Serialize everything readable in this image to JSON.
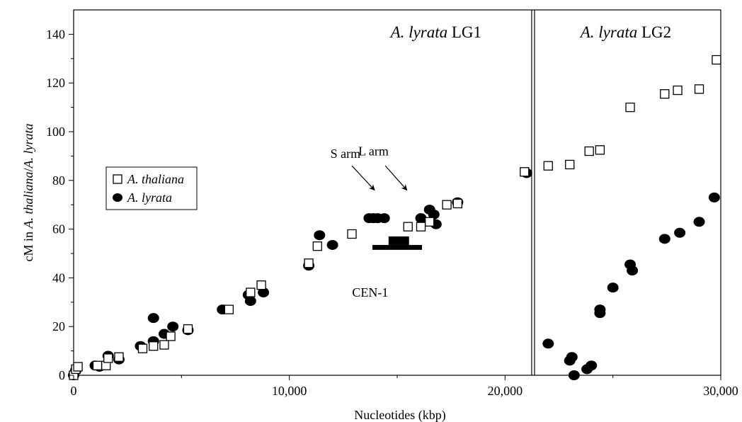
{
  "chart_data": {
    "type": "scatter",
    "xlabel": "Nucleotides (kbp)",
    "ylabel_parts": [
      {
        "text": "cM in ",
        "italic": false
      },
      {
        "text": "A. thaliana",
        "italic": true
      },
      {
        "text": "/",
        "italic": false
      },
      {
        "text": "A. lyrata",
        "italic": true
      }
    ],
    "xlim": [
      0,
      30000
    ],
    "ylim": [
      0,
      150
    ],
    "x_ticks": [
      {
        "value": 0,
        "label": "0"
      },
      {
        "value": 10000,
        "label": "10,000"
      },
      {
        "value": 20000,
        "label": "20,000"
      },
      {
        "value": 30000,
        "label": "30,000"
      }
    ],
    "y_ticks": [
      {
        "value": 0,
        "label": "0"
      },
      {
        "value": 20,
        "label": "20"
      },
      {
        "value": 40,
        "label": "40"
      },
      {
        "value": 60,
        "label": "60"
      },
      {
        "value": 80,
        "label": "80"
      },
      {
        "value": 100,
        "label": "100"
      },
      {
        "value": 120,
        "label": "120"
      },
      {
        "value": 140,
        "label": "140"
      }
    ],
    "divider_x": 21300,
    "regions": [
      {
        "label_italic": "A. lyrata",
        "label_plain": " LG1",
        "x": 16800,
        "y": 141
      },
      {
        "label_italic": "A. lyrata",
        "label_plain": " LG2",
        "x": 25600,
        "y": 141
      }
    ],
    "annotations": [
      {
        "text": "S arm",
        "x": 12600,
        "y": 91
      },
      {
        "text": "L arm",
        "x": 13900,
        "y": 92
      },
      {
        "text": "CEN-1",
        "x": 13750,
        "y": 34
      }
    ],
    "arrows": [
      {
        "from": [
          12900,
          86
        ],
        "to": [
          13950,
          76
        ]
      },
      {
        "from": [
          14450,
          86
        ],
        "to": [
          15450,
          76
        ]
      }
    ],
    "centromere": {
      "x_start": 13850,
      "x_end": 16150,
      "x_top_start": 14600,
      "x_top_end": 15550,
      "y_base": 51.5,
      "y_mid": 53.5,
      "y_top": 57
    },
    "legend_position": "left",
    "series": [
      {
        "name_parts": [
          {
            "text": "A. thaliana",
            "italic": true
          }
        ],
        "marker": "open-square",
        "points": [
          [
            0,
            0
          ],
          [
            100,
            2.5
          ],
          [
            200,
            3.5
          ],
          [
            1100,
            4
          ],
          [
            1500,
            4
          ],
          [
            1600,
            7
          ],
          [
            2100,
            7.5
          ],
          [
            3200,
            11
          ],
          [
            3700,
            12
          ],
          [
            4200,
            12.5
          ],
          [
            4500,
            16
          ],
          [
            5300,
            19
          ],
          [
            7200,
            27
          ],
          [
            8200,
            34
          ],
          [
            8700,
            37
          ],
          [
            10900,
            46
          ],
          [
            11300,
            53
          ],
          [
            12900,
            58
          ],
          [
            15500,
            61
          ],
          [
            16100,
            61
          ],
          [
            16500,
            63
          ],
          [
            17300,
            70
          ],
          [
            17800,
            70.5
          ],
          [
            20900,
            83.5
          ],
          [
            22000,
            86
          ],
          [
            23000,
            86.5
          ],
          [
            23900,
            92
          ],
          [
            24400,
            92.5
          ],
          [
            25800,
            110
          ],
          [
            27400,
            115.5
          ],
          [
            28000,
            117
          ],
          [
            29000,
            117.5
          ],
          [
            29800,
            129.5
          ]
        ]
      },
      {
        "name_parts": [
          {
            "text": "A. lyrata",
            "italic": true
          }
        ],
        "marker": "filled-circle",
        "points": [
          [
            0,
            0
          ],
          [
            100,
            2
          ],
          [
            1000,
            4
          ],
          [
            1200,
            3.5
          ],
          [
            1600,
            8
          ],
          [
            2100,
            6.5
          ],
          [
            3100,
            12
          ],
          [
            3700,
            14
          ],
          [
            3700,
            23.5
          ],
          [
            4200,
            17
          ],
          [
            4600,
            20
          ],
          [
            5300,
            18.5
          ],
          [
            6900,
            27
          ],
          [
            8100,
            33
          ],
          [
            8200,
            30.5
          ],
          [
            8800,
            34
          ],
          [
            10900,
            45
          ],
          [
            11400,
            57.5
          ],
          [
            12000,
            53.5
          ],
          [
            13700,
            64.5
          ],
          [
            13900,
            64.5
          ],
          [
            14100,
            64.5
          ],
          [
            14400,
            64.5
          ],
          [
            16100,
            64.5
          ],
          [
            16500,
            68
          ],
          [
            16700,
            66
          ],
          [
            16800,
            62
          ],
          [
            17800,
            71
          ],
          [
            21000,
            83
          ],
          [
            22000,
            13
          ],
          [
            23000,
            6
          ],
          [
            23100,
            7.5
          ],
          [
            23200,
            0
          ],
          [
            23800,
            2.5
          ],
          [
            24000,
            4
          ],
          [
            24400,
            27
          ],
          [
            24400,
            25.5
          ],
          [
            25000,
            36
          ],
          [
            25800,
            45.5
          ],
          [
            25900,
            43
          ],
          [
            27400,
            56
          ],
          [
            28100,
            58.5
          ],
          [
            29000,
            63
          ],
          [
            29700,
            73
          ]
        ]
      }
    ]
  }
}
